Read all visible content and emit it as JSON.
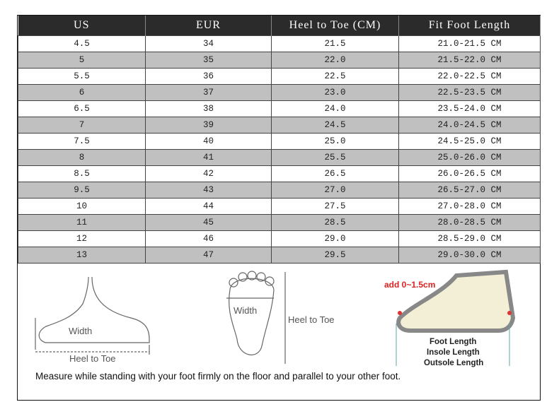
{
  "table": {
    "headers": [
      "US",
      "EUR",
      "Heel to Toe (CM)",
      "Fit Foot Length"
    ],
    "rows": [
      [
        "4.5",
        "34",
        "21.5",
        "21.0-21.5 CM"
      ],
      [
        "5",
        "35",
        "22.0",
        "21.5-22.0 CM"
      ],
      [
        "5.5",
        "36",
        "22.5",
        "22.0-22.5 CM"
      ],
      [
        "6",
        "37",
        "23.0",
        "22.5-23.5 CM"
      ],
      [
        "6.5",
        "38",
        "24.0",
        "23.5-24.0 CM"
      ],
      [
        "7",
        "39",
        "24.5",
        "24.0-24.5 CM"
      ],
      [
        "7.5",
        "40",
        "25.0",
        "24.5-25.0 CM"
      ],
      [
        "8",
        "41",
        "25.5",
        "25.0-26.0 CM"
      ],
      [
        "8.5",
        "42",
        "26.5",
        "26.0-26.5 CM"
      ],
      [
        "9.5",
        "43",
        "27.0",
        "26.5-27.0 CM"
      ],
      [
        "10",
        "44",
        "27.5",
        "27.0-28.0 CM"
      ],
      [
        "11",
        "45",
        "28.5",
        "28.0-28.5 CM"
      ],
      [
        "12",
        "46",
        "29.0",
        "28.5-29.0 CM"
      ],
      [
        "13",
        "47",
        "29.5",
        "29.0-30.0 CM"
      ]
    ]
  },
  "diagram": {
    "side_width": "Width",
    "side_heel_to_toe": "Heel to Toe",
    "sole_width": "Width",
    "sole_heel_to_toe": "Heel to Toe",
    "add": "add 0~1.5cm",
    "foot_length": "Foot Length",
    "insole_length": "Insole Length",
    "outsole_length": "Outsole Length",
    "note": "Measure while standing with your foot firmly on the floor and parallel to your other foot."
  }
}
